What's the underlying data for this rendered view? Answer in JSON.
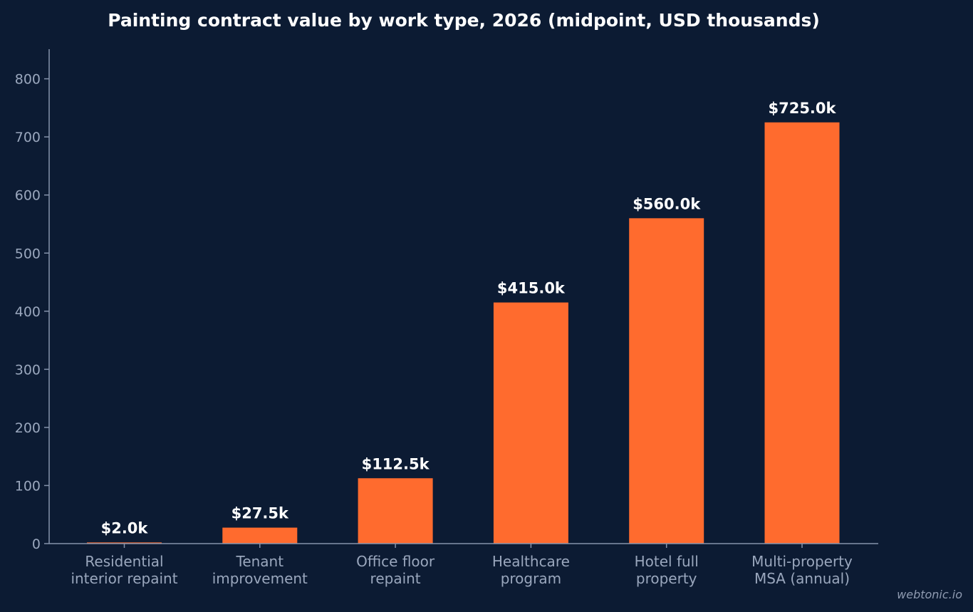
{
  "chart_data": {
    "type": "bar",
    "title": "Painting contract value by work type, 2026 (midpoint, USD thousands)",
    "xlabel": "",
    "ylabel": "",
    "ylim": [
      0,
      850
    ],
    "yticks": [
      "0",
      "100",
      "200",
      "300",
      "400",
      "500",
      "600",
      "700",
      "800"
    ],
    "grid": false,
    "categories": [
      [
        "Residential",
        "interior repaint"
      ],
      [
        "Tenant",
        "improvement"
      ],
      [
        "Office floor",
        "repaint"
      ],
      [
        "Healthcare",
        "program"
      ],
      [
        "Hotel full",
        "property"
      ],
      [
        "Multi-property",
        "MSA (annual)"
      ]
    ],
    "values": [
      2.0,
      27.5,
      112.5,
      415.0,
      560.0,
      725.0
    ],
    "data_labels": [
      "$2.0k",
      "$27.5k",
      "$112.5k",
      "$415.0k",
      "$560.0k",
      "$725.0k"
    ],
    "bar_color": "#ff6b2e",
    "background_color": "#0c1b33"
  },
  "watermark": "webtonic.io"
}
